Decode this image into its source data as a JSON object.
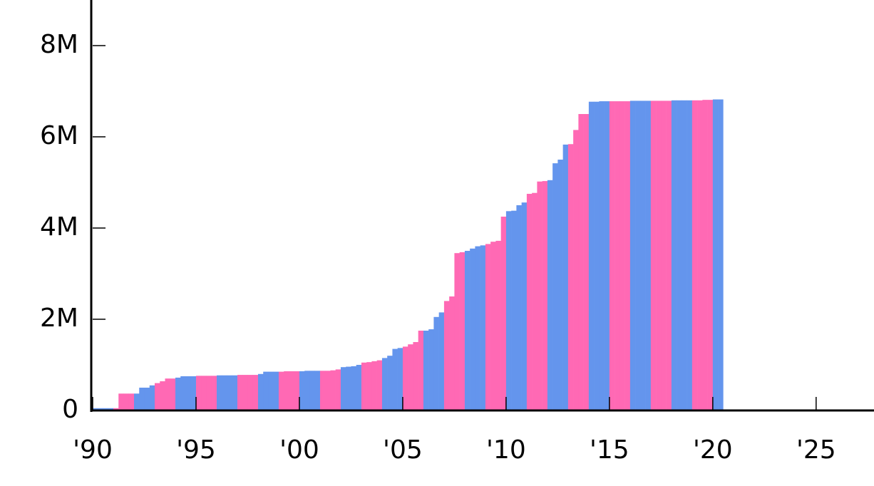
{
  "chart_data": {
    "type": "bar",
    "x": [
      1990,
      1990.25,
      1990.5,
      1990.75,
      1991,
      1991.25,
      1991.5,
      1991.75,
      1992,
      1992.25,
      1992.5,
      1992.75,
      1993,
      1993.25,
      1993.5,
      1993.75,
      1994,
      1994.25,
      1994.5,
      1994.75,
      1995,
      1995.25,
      1995.5,
      1995.75,
      1996,
      1996.25,
      1996.5,
      1996.75,
      1997,
      1997.25,
      1997.5,
      1997.75,
      1998,
      1998.25,
      1998.5,
      1998.75,
      1999,
      1999.25,
      1999.5,
      1999.75,
      2000,
      2000.25,
      2000.5,
      2000.75,
      2001,
      2001.25,
      2001.5,
      2001.75,
      2002,
      2002.25,
      2002.5,
      2002.75,
      2003,
      2003.25,
      2003.5,
      2003.75,
      2004,
      2004.25,
      2004.5,
      2004.75,
      2005,
      2005.25,
      2005.5,
      2005.75,
      2006,
      2006.25,
      2006.5,
      2006.75,
      2007,
      2007.25,
      2007.5,
      2007.75,
      2008,
      2008.25,
      2008.5,
      2008.75,
      2009,
      2009.25,
      2009.5,
      2009.75,
      2010,
      2010.25,
      2010.5,
      2010.75,
      2011,
      2011.25,
      2011.5,
      2011.75,
      2012,
      2012.25,
      2012.5,
      2012.75,
      2013,
      2013.25,
      2013.5,
      2013.75,
      2014,
      2014.25,
      2014.5,
      2014.75,
      2015,
      2015.25,
      2015.5,
      2015.75,
      2016,
      2016.25,
      2016.5,
      2016.75,
      2017,
      2017.25,
      2017.5,
      2017.75,
      2018,
      2018.25,
      2018.5,
      2018.75,
      2019,
      2019.25,
      2019.5,
      2019.75,
      2020,
      2020.25
    ],
    "values": [
      0.05,
      0.05,
      0.05,
      0.05,
      0.05,
      0.37,
      0.37,
      0.37,
      0.37,
      0.5,
      0.5,
      0.55,
      0.6,
      0.64,
      0.7,
      0.7,
      0.72,
      0.75,
      0.75,
      0.75,
      0.76,
      0.76,
      0.76,
      0.76,
      0.77,
      0.77,
      0.77,
      0.77,
      0.78,
      0.78,
      0.78,
      0.78,
      0.8,
      0.85,
      0.85,
      0.85,
      0.85,
      0.86,
      0.86,
      0.86,
      0.86,
      0.87,
      0.87,
      0.87,
      0.87,
      0.87,
      0.88,
      0.9,
      0.95,
      0.96,
      0.97,
      1.0,
      1.05,
      1.06,
      1.08,
      1.1,
      1.15,
      1.2,
      1.35,
      1.37,
      1.4,
      1.45,
      1.5,
      1.75,
      1.75,
      1.78,
      2.05,
      2.15,
      2.4,
      2.5,
      3.45,
      3.47,
      3.5,
      3.55,
      3.6,
      3.62,
      3.65,
      3.7,
      3.72,
      4.25,
      4.37,
      4.38,
      4.5,
      4.56,
      4.75,
      4.77,
      5.02,
      5.03,
      5.05,
      5.42,
      5.5,
      5.83,
      5.84,
      6.15,
      6.5,
      6.5,
      6.77,
      6.77,
      6.78,
      6.78,
      6.78,
      6.78,
      6.78,
      6.78,
      6.79,
      6.79,
      6.79,
      6.79,
      6.79,
      6.79,
      6.79,
      6.79,
      6.8,
      6.8,
      6.8,
      6.8,
      6.8,
      6.8,
      6.81,
      6.81,
      6.82,
      6.82
    ],
    "bar_width": 0.25,
    "colors": [
      "#6495ed",
      "#ff69b4"
    ],
    "xlim": [
      1990,
      2027.8
    ],
    "ylim": [
      0,
      9
    ],
    "xticks": [
      {
        "value": 1990,
        "label": "'90"
      },
      {
        "value": 1995,
        "label": "'95"
      },
      {
        "value": 2000,
        "label": "'00"
      },
      {
        "value": 2005,
        "label": "'05"
      },
      {
        "value": 2010,
        "label": "'10"
      },
      {
        "value": 2015,
        "label": "'15"
      },
      {
        "value": 2020,
        "label": "'20"
      },
      {
        "value": 2025,
        "label": "'25"
      }
    ],
    "yticks": [
      0,
      {
        "value": 2,
        "label": "2M"
      },
      {
        "value": 4,
        "label": "4M"
      },
      {
        "value": 6,
        "label": "6M"
      },
      {
        "value": 8,
        "label": "8M"
      }
    ],
    "grid": false
  }
}
